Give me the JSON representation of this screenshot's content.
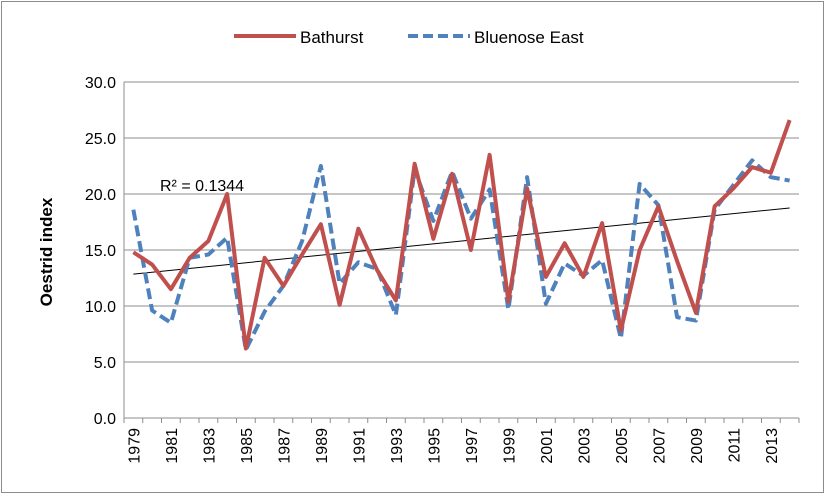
{
  "chart_data": {
    "type": "line",
    "ylabel": "Oestrid index",
    "ylim": [
      0,
      30
    ],
    "yticks": [
      "0.0",
      "5.0",
      "10.0",
      "15.0",
      "20.0",
      "25.0",
      "30.0"
    ],
    "grid": true,
    "legend_position": "top",
    "x": [
      1979,
      1980,
      1981,
      1982,
      1983,
      1984,
      1985,
      1986,
      1987,
      1988,
      1989,
      1990,
      1991,
      1992,
      1993,
      1994,
      1995,
      1996,
      1997,
      1998,
      1999,
      2000,
      2001,
      2002,
      2003,
      2004,
      2005,
      2006,
      2007,
      2008,
      2009,
      2010,
      2011,
      2012,
      2013,
      2014
    ],
    "xtick_labels": [
      "1979",
      "1981",
      "1983",
      "1985",
      "1987",
      "1989",
      "1991",
      "1993",
      "1995",
      "1997",
      "1999",
      "2001",
      "2003",
      "2005",
      "2007",
      "2009",
      "2011",
      "2013"
    ],
    "series": [
      {
        "name": "Bathurst",
        "color": "#c0504d",
        "style": "solid",
        "values": [
          14.8,
          13.7,
          11.5,
          14.3,
          15.8,
          20.0,
          6.2,
          14.3,
          11.8,
          14.6,
          17.3,
          10.1,
          16.9,
          13.2,
          10.5,
          22.7,
          16.0,
          21.8,
          15.0,
          23.5,
          10.4,
          20.5,
          12.6,
          15.6,
          12.6,
          17.4,
          7.8,
          15.0,
          18.9,
          14.0,
          9.4,
          18.9,
          20.5,
          22.4,
          21.9,
          26.6
        ]
      },
      {
        "name": "Bluenose East",
        "color": "#4f81bd",
        "style": "dashed",
        "values": [
          18.6,
          9.6,
          8.5,
          14.3,
          14.6,
          16.1,
          6.1,
          9.5,
          11.8,
          15.8,
          22.5,
          12.0,
          13.9,
          13.3,
          9.2,
          22.2,
          17.6,
          22.0,
          17.8,
          20.4,
          9.7,
          21.5,
          10.2,
          13.8,
          12.7,
          14.1,
          7.1,
          20.9,
          19.0,
          9.0,
          8.7,
          18.6,
          20.8,
          23.0,
          21.5,
          21.2
        ]
      }
    ],
    "trendline": {
      "series": "Bathurst",
      "type": "linear",
      "label": "R² = 0.1344",
      "start": [
        1979,
        12.85
      ],
      "end": [
        2014,
        18.75
      ],
      "color": "#000000"
    }
  }
}
